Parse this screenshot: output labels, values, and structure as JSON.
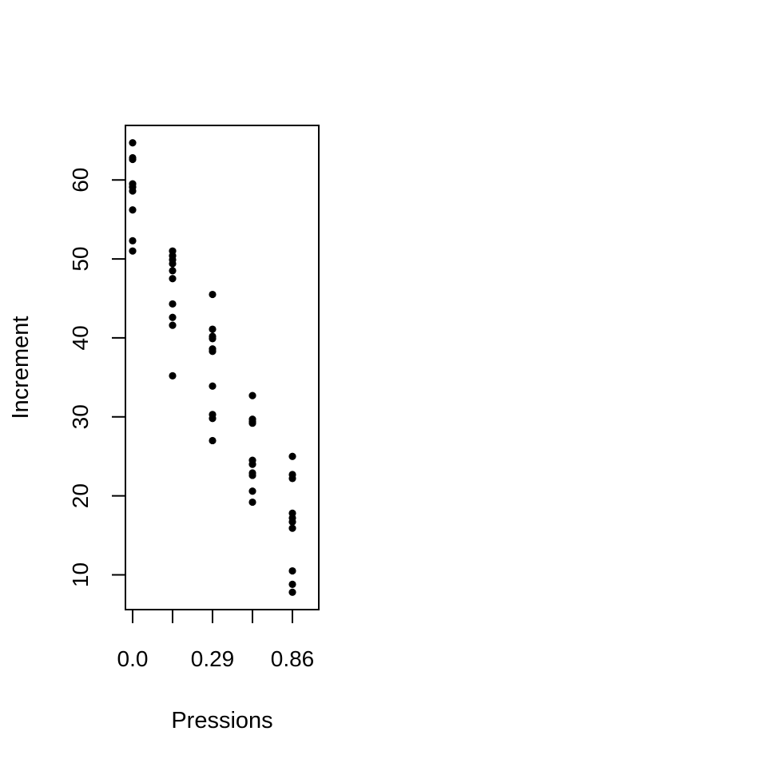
{
  "chart_data": {
    "type": "scatter",
    "title": "",
    "xlabel": "Pressions",
    "ylabel": "Increment",
    "x_categories": [
      "0.0",
      "",
      "0.29",
      "",
      "0.86"
    ],
    "ylim": [
      5.6,
      66.9
    ],
    "yticks": [
      10,
      20,
      30,
      40,
      50,
      60
    ],
    "grid": false,
    "series": [
      {
        "points": [
          {
            "x": 1,
            "y": 64.7
          },
          {
            "x": 1,
            "y": 62.8
          },
          {
            "x": 1,
            "y": 62.6
          },
          {
            "x": 1,
            "y": 59.5
          },
          {
            "x": 1,
            "y": 59.1
          },
          {
            "x": 1,
            "y": 58.6
          },
          {
            "x": 1,
            "y": 56.2
          },
          {
            "x": 1,
            "y": 52.3
          },
          {
            "x": 1,
            "y": 51.0
          },
          {
            "x": 2,
            "y": 51.0
          },
          {
            "x": 2,
            "y": 50.4
          },
          {
            "x": 2,
            "y": 49.9
          },
          {
            "x": 2,
            "y": 49.4
          },
          {
            "x": 2,
            "y": 48.5
          },
          {
            "x": 2,
            "y": 47.5
          },
          {
            "x": 2,
            "y": 44.3
          },
          {
            "x": 2,
            "y": 42.6
          },
          {
            "x": 2,
            "y": 41.6
          },
          {
            "x": 2,
            "y": 35.2
          },
          {
            "x": 3,
            "y": 45.5
          },
          {
            "x": 3,
            "y": 41.1
          },
          {
            "x": 3,
            "y": 40.2
          },
          {
            "x": 3,
            "y": 39.9
          },
          {
            "x": 3,
            "y": 38.6
          },
          {
            "x": 3,
            "y": 38.3
          },
          {
            "x": 3,
            "y": 33.9
          },
          {
            "x": 3,
            "y": 30.3
          },
          {
            "x": 3,
            "y": 29.8
          },
          {
            "x": 3,
            "y": 27.0
          },
          {
            "x": 4,
            "y": 32.7
          },
          {
            "x": 4,
            "y": 29.7
          },
          {
            "x": 4,
            "y": 29.4
          },
          {
            "x": 4,
            "y": 29.2
          },
          {
            "x": 4,
            "y": 24.5
          },
          {
            "x": 4,
            "y": 24.0
          },
          {
            "x": 4,
            "y": 22.9
          },
          {
            "x": 4,
            "y": 22.6
          },
          {
            "x": 4,
            "y": 20.6
          },
          {
            "x": 4,
            "y": 19.2
          },
          {
            "x": 5,
            "y": 25.0
          },
          {
            "x": 5,
            "y": 22.7
          },
          {
            "x": 5,
            "y": 22.2
          },
          {
            "x": 5,
            "y": 17.8
          },
          {
            "x": 5,
            "y": 17.2
          },
          {
            "x": 5,
            "y": 16.7
          },
          {
            "x": 5,
            "y": 15.9
          },
          {
            "x": 5,
            "y": 10.5
          },
          {
            "x": 5,
            "y": 8.8
          },
          {
            "x": 5,
            "y": 7.8
          }
        ]
      }
    ]
  }
}
